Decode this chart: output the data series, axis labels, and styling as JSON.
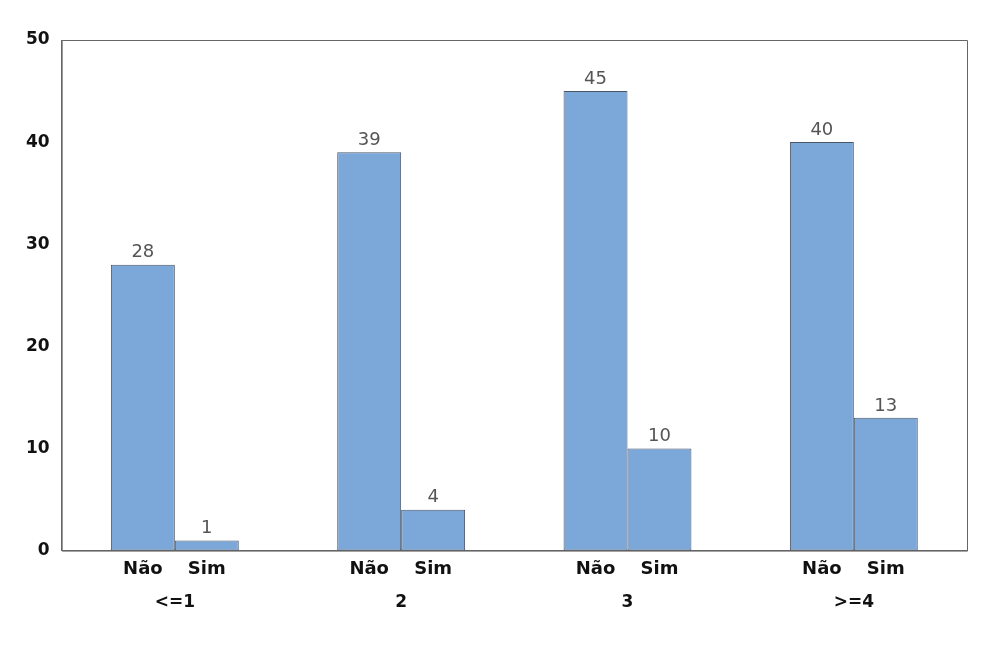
{
  "chart_data": {
    "type": "bar",
    "categories": [
      "<=1",
      "2",
      "3",
      ">=4"
    ],
    "series": [
      {
        "name": "Não",
        "color": "#7ba7d9",
        "values": [
          28,
          39,
          45,
          40
        ]
      },
      {
        "name": "Sim",
        "color": "#7ba7d9",
        "values": [
          1,
          4,
          10,
          13
        ]
      }
    ],
    "ylim": [
      0,
      50
    ],
    "yticks": [
      0,
      10,
      20,
      30,
      40,
      50
    ],
    "grid": false,
    "data_labels": true
  }
}
